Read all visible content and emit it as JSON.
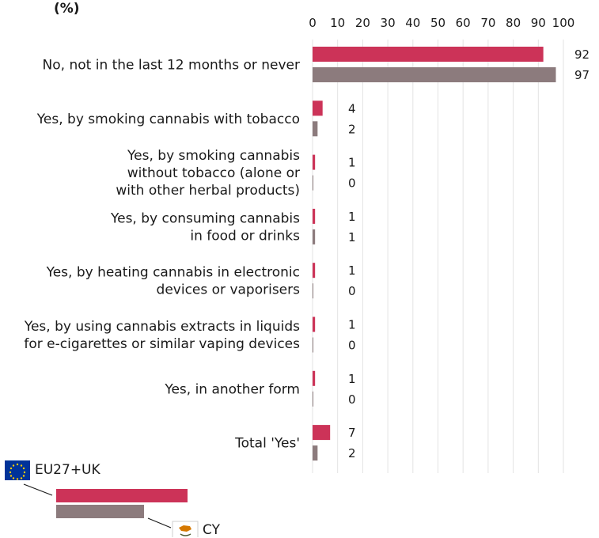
{
  "chart_data": {
    "type": "bar",
    "orientation": "horizontal",
    "unit_label": "(%)",
    "xlim": [
      0,
      100
    ],
    "ticks": [
      0,
      10,
      20,
      30,
      40,
      50,
      60,
      70,
      80,
      90,
      100
    ],
    "grid": true,
    "categories": [
      [
        "No, not in the last 12 months or never"
      ],
      [
        "Yes, by smoking cannabis with tobacco"
      ],
      [
        "Yes, by smoking cannabis",
        "without tobacco (alone or",
        "with other herbal products)"
      ],
      [
        "Yes, by consuming cannabis",
        "in food or drinks"
      ],
      [
        "Yes, by heating cannabis in electronic",
        "devices or vaporisers"
      ],
      [
        "Yes, by using cannabis extracts in liquids",
        "for e-cigarettes or similar vaping devices"
      ],
      [
        "Yes, in another form"
      ],
      [
        "Total 'Yes'"
      ]
    ],
    "series": [
      {
        "name": "EU27+UK",
        "color": "#cc3358",
        "values": [
          92,
          4,
          1,
          1,
          1,
          1,
          1,
          7
        ]
      },
      {
        "name": "CY",
        "color": "#8c7b7d",
        "values": [
          97,
          2,
          0,
          1,
          0,
          0,
          0,
          2
        ]
      }
    ],
    "legend_position": "bottom-left"
  }
}
